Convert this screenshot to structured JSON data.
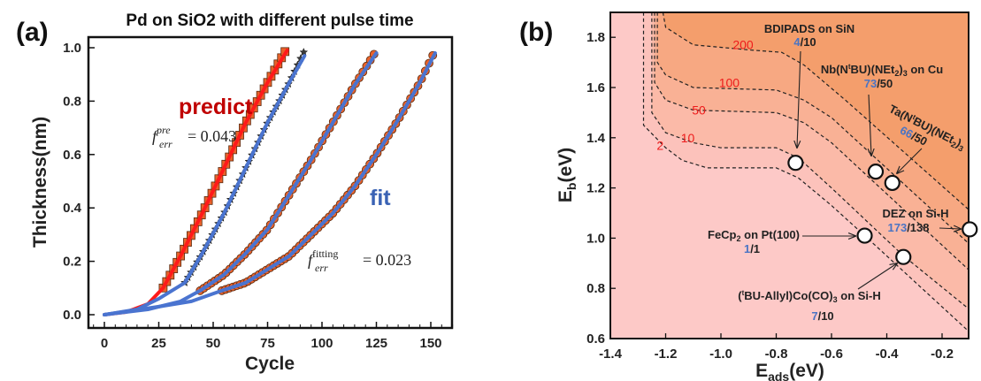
{
  "chart_data": [
    {
      "panel_label": "(a)",
      "type": "line",
      "title": "Pd on SiO2 with different pulse time",
      "xlabel": "Cycle",
      "ylabel": "Thickness(nm)",
      "xlim": [
        -5,
        160
      ],
      "ylim": [
        -0.05,
        1.05
      ],
      "xticks": [
        "0",
        "25",
        "50",
        "75",
        "100",
        "125",
        "150"
      ],
      "xtick_values": [
        0,
        25,
        50,
        75,
        100,
        125,
        150
      ],
      "yticks": [
        "0.0",
        "0.2",
        "0.4",
        "0.6",
        "0.8",
        "1.0"
      ],
      "ytick_values": [
        0,
        0.2,
        0.4,
        0.6,
        0.8,
        1.0
      ],
      "grid": false,
      "colors": {
        "predict": "#ff1a1a",
        "fit": "#4a74d0",
        "marker": "#e8622a",
        "star": "#3a3a3a"
      },
      "series": [
        {
          "marker": "square",
          "curve": "predict",
          "curve_points": [
            [
              0,
              0
            ],
            [
              10,
              0.01
            ],
            [
              20,
              0.04
            ],
            [
              27,
              0.1
            ],
            [
              35,
              0.22
            ],
            [
              45,
              0.38
            ],
            [
              55,
              0.55
            ],
            [
              65,
              0.72
            ],
            [
              75,
              0.87
            ],
            [
              84,
              0.99
            ]
          ],
          "data_points": [
            [
              27,
              0.1
            ],
            [
              35,
              0.22
            ],
            [
              45,
              0.38
            ],
            [
              55,
              0.55
            ],
            [
              65,
              0.72
            ],
            [
              75,
              0.87
            ],
            [
              84,
              1.0
            ]
          ]
        },
        {
          "marker": "star",
          "curve": "fit",
          "curve_points": [
            [
              0,
              0
            ],
            [
              15,
              0.02
            ],
            [
              25,
              0.06
            ],
            [
              37,
              0.12
            ],
            [
              45,
              0.23
            ],
            [
              55,
              0.38
            ],
            [
              65,
              0.55
            ],
            [
              75,
              0.72
            ],
            [
              85,
              0.87
            ],
            [
              92,
              0.97
            ]
          ],
          "data_points": [
            [
              37,
              0.12
            ],
            [
              45,
              0.23
            ],
            [
              55,
              0.38
            ],
            [
              65,
              0.55
            ],
            [
              75,
              0.72
            ],
            [
              85,
              0.87
            ],
            [
              92,
              0.99
            ]
          ]
        },
        {
          "marker": "circle",
          "curve": "fit",
          "curve_points": [
            [
              0,
              0
            ],
            [
              20,
              0.02
            ],
            [
              35,
              0.05
            ],
            [
              44,
              0.09
            ],
            [
              55,
              0.15
            ],
            [
              65,
              0.23
            ],
            [
              75,
              0.32
            ],
            [
              85,
              0.45
            ],
            [
              95,
              0.58
            ],
            [
              105,
              0.72
            ],
            [
              115,
              0.86
            ],
            [
              125,
              0.98
            ]
          ],
          "data_points": [
            [
              44,
              0.09
            ],
            [
              55,
              0.15
            ],
            [
              65,
              0.23
            ],
            [
              75,
              0.32
            ],
            [
              85,
              0.45
            ],
            [
              95,
              0.58
            ],
            [
              105,
              0.72
            ],
            [
              115,
              0.86
            ],
            [
              125,
              0.99
            ]
          ]
        },
        {
          "marker": "circle",
          "curve": "fit",
          "curve_points": [
            [
              0,
              0
            ],
            [
              25,
              0.03
            ],
            [
              40,
              0.05
            ],
            [
              54,
              0.09
            ],
            [
              65,
              0.12
            ],
            [
              75,
              0.17
            ],
            [
              85,
              0.22
            ],
            [
              95,
              0.3
            ],
            [
              105,
              0.38
            ],
            [
              115,
              0.48
            ],
            [
              125,
              0.6
            ],
            [
              135,
              0.73
            ],
            [
              145,
              0.87
            ],
            [
              152,
              0.98
            ]
          ],
          "data_points": [
            [
              54,
              0.09
            ],
            [
              65,
              0.12
            ],
            [
              75,
              0.17
            ],
            [
              85,
              0.22
            ],
            [
              95,
              0.3
            ],
            [
              105,
              0.38
            ],
            [
              115,
              0.48
            ],
            [
              125,
              0.6
            ],
            [
              135,
              0.73
            ],
            [
              145,
              0.87
            ],
            [
              152,
              0.99
            ]
          ]
        }
      ],
      "annotations": {
        "predict": "predict",
        "fit": "fit",
        "pre_f": "f",
        "pre_sup": "pre",
        "pre_sub": "err",
        "pre_value": "= 0.043",
        "fitting_f": "f",
        "fitting_sup": "fitting",
        "fitting_sub": "err",
        "fitting_value": "= 0.023"
      }
    },
    {
      "panel_label": "(b)",
      "type": "contour",
      "xlabel": {
        "main": "E",
        "sub": "ads",
        "unit": "(eV)"
      },
      "ylabel": {
        "main": "E",
        "sub": "b",
        "unit": "(eV)"
      },
      "xlim": [
        -1.4,
        -0.1
      ],
      "ylim": [
        0.6,
        1.9
      ],
      "xticks": [
        "-1.4",
        "-1.2",
        "-1.0",
        "-0.8",
        "-0.6",
        "-0.4",
        "-0.2"
      ],
      "xtick_values": [
        -1.4,
        -1.2,
        -1.0,
        -0.8,
        -0.6,
        -0.4,
        -0.2
      ],
      "yticks": [
        "0.6",
        "0.8",
        "1.0",
        "1.2",
        "1.4",
        "1.6",
        "1.8"
      ],
      "ytick_values": [
        0.6,
        0.8,
        1.0,
        1.2,
        1.4,
        1.6,
        1.8
      ],
      "grid": false,
      "colors": {
        "low": "#fdc9c7",
        "high": "#f39c66",
        "level_label": "#ee1c1c",
        "numerator": "#4a74c4"
      },
      "contours": [
        {
          "level": "2",
          "fill": "#fcc2bb",
          "label_at": [
            -1.22,
            1.37
          ],
          "points": [
            [
              -1.28,
              1.9
            ],
            [
              -1.28,
              1.45
            ],
            [
              -1.2,
              1.36
            ],
            [
              -1.14,
              1.31
            ],
            [
              -1.05,
              1.28
            ],
            [
              -0.8,
              1.28
            ],
            [
              -0.72,
              1.24
            ],
            [
              -0.6,
              1.13
            ],
            [
              -0.48,
              1.01
            ],
            [
              -0.1,
              0.625
            ]
          ]
        },
        {
          "level": "10",
          "fill": "#fbbaa8",
          "label_at": [
            -1.12,
            1.4
          ],
          "points": [
            [
              -1.25,
              1.9
            ],
            [
              -1.25,
              1.5
            ],
            [
              -1.2,
              1.42
            ],
            [
              -1.1,
              1.38
            ],
            [
              -1.0,
              1.36
            ],
            [
              -0.8,
              1.36
            ],
            [
              -0.72,
              1.32
            ],
            [
              -0.6,
              1.2
            ],
            [
              -0.34,
              0.93
            ],
            [
              -0.1,
              0.715
            ]
          ]
        },
        {
          "level": "50",
          "fill": "#f9b195",
          "label_at": [
            -1.08,
            1.51
          ],
          "points": [
            [
              -1.24,
              1.9
            ],
            [
              -1.24,
              1.62
            ],
            [
              -1.2,
              1.55
            ],
            [
              -1.1,
              1.51
            ],
            [
              -0.8,
              1.5
            ],
            [
              -0.7,
              1.46
            ],
            [
              -0.6,
              1.38
            ],
            [
              -0.1,
              0.87
            ]
          ]
        },
        {
          "level": "100",
          "fill": "#f7a882",
          "label_at": [
            -0.97,
            1.62
          ],
          "points": [
            [
              -1.23,
              1.9
            ],
            [
              -1.23,
              1.7
            ],
            [
              -1.2,
              1.65
            ],
            [
              -1.1,
              1.6
            ],
            [
              -0.8,
              1.59
            ],
            [
              -0.7,
              1.55
            ],
            [
              -0.6,
              1.48
            ],
            [
              -0.1,
              0.975
            ]
          ]
        },
        {
          "level": "200",
          "fill": "#f49e6c",
          "label_at": [
            -0.92,
            1.77
          ],
          "points": [
            [
              -1.21,
              1.9
            ],
            [
              -1.2,
              1.84
            ],
            [
              -1.1,
              1.77
            ],
            [
              -0.9,
              1.75
            ],
            [
              -0.78,
              1.74
            ],
            [
              -0.7,
              1.69
            ],
            [
              -0.55,
              1.55
            ],
            [
              -0.1,
              1.11
            ]
          ]
        }
      ],
      "points": [
        {
          "id": "bdipads",
          "x": -0.73,
          "y": 1.3
        },
        {
          "id": "nb",
          "x": -0.44,
          "y": 1.265
        },
        {
          "id": "ta",
          "x": -0.38,
          "y": 1.22
        },
        {
          "id": "dez",
          "x": -0.1,
          "y": 1.035
        },
        {
          "id": "fecp2",
          "x": -0.48,
          "y": 1.01
        },
        {
          "id": "tbu",
          "x": -0.34,
          "y": 0.925
        }
      ],
      "labels": {
        "bdipads": {
          "name": "BDIPADS on SiN",
          "num": "4",
          "den": "/10"
        },
        "nb": {
          "p1": "Nb(N",
          "sup": "t",
          "p2": "BU)(NEt",
          "sub1": "2",
          "p3": ")",
          "sub2": "3",
          "p4": " on Cu",
          "num": "73",
          "den": "/50"
        },
        "ta": {
          "p1": "Ta(N",
          "sup": "t",
          "p2": "BU)(NEt",
          "sub1": "2",
          "p3": ")",
          "sub2": "3",
          "num": "66",
          "den": "/50"
        },
        "dez": {
          "name": "DEZ on Si-H",
          "num": "173",
          "den": "/138"
        },
        "fecp2": {
          "p1": "FeCp",
          "sub": "2",
          "p2": " on Pt(100)",
          "num": "1",
          "den": "/1"
        },
        "tbu": {
          "p0": "(",
          "sup": "t",
          "p1": "BU-Allyl)Co(CO)",
          "sub": "3",
          "p2": " on Si-H",
          "num": "7",
          "den": "/10"
        }
      }
    }
  ]
}
